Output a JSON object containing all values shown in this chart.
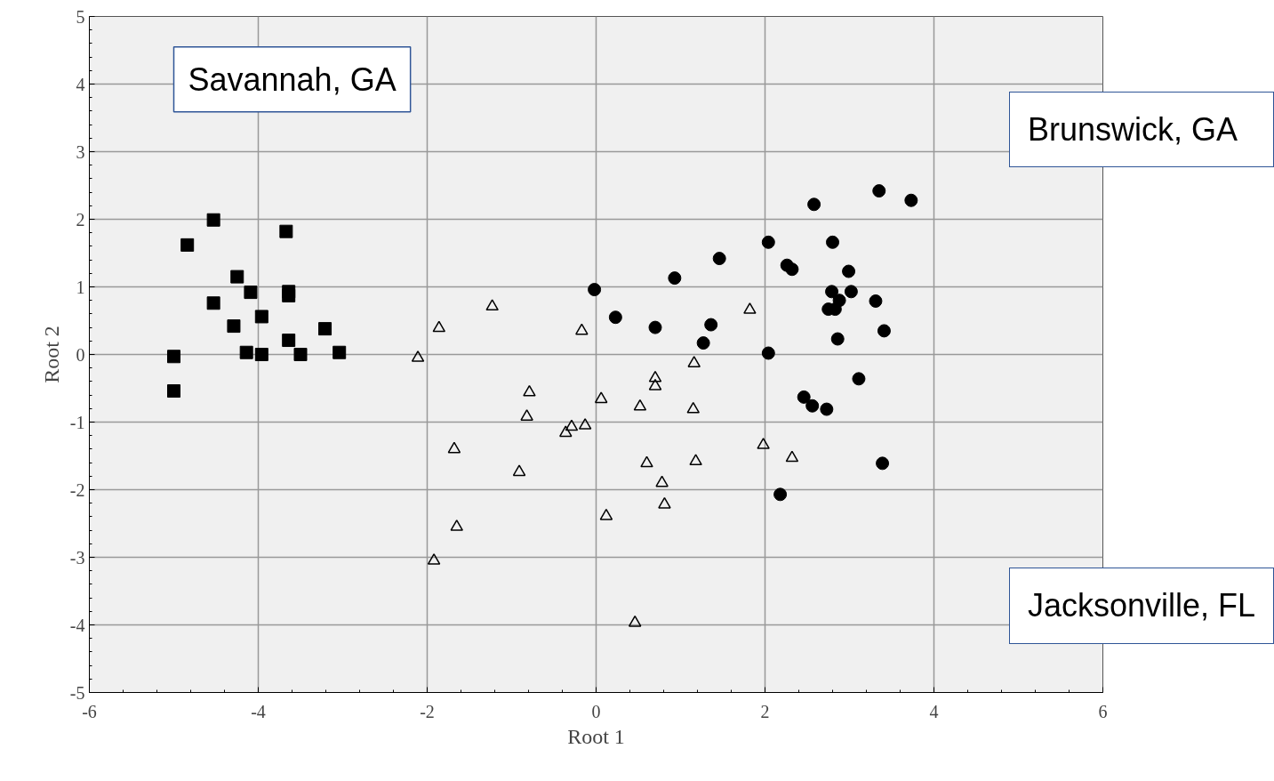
{
  "chart_data": {
    "type": "scatter",
    "xlabel": "Root 1",
    "ylabel": "Root 2",
    "xlim": [
      -6,
      6
    ],
    "ylim": [
      -5,
      5
    ],
    "xticks": [
      -6,
      -4,
      -2,
      0,
      2,
      4,
      6
    ],
    "yticks": [
      -5,
      -4,
      -3,
      -2,
      -1,
      0,
      1,
      2,
      3,
      4,
      5
    ],
    "grid": true,
    "legend": false,
    "series": [
      {
        "name": "Savannah, GA",
        "color": "#000000",
        "marker": "square",
        "x": [
          -4.53,
          -4.84,
          -3.67,
          -4.25,
          -4.09,
          -3.64,
          -3.64,
          -4.53,
          -3.96,
          -4.29,
          -3.21,
          -3.64,
          -4.14,
          -3.96,
          -3.5,
          -3.04,
          -5.0,
          -5.0
        ],
        "values": [
          1.99,
          1.62,
          1.82,
          1.15,
          0.92,
          0.93,
          0.87,
          0.76,
          0.56,
          0.42,
          0.38,
          0.21,
          0.03,
          0.0,
          0.0,
          0.03,
          -0.03,
          -0.54
        ]
      },
      {
        "name": "Brunswick, GA",
        "color": "#000000",
        "marker": "circle",
        "x": [
          3.35,
          3.73,
          2.58,
          2.04,
          2.8,
          1.46,
          2.26,
          2.32,
          2.99,
          0.93,
          -0.02,
          2.79,
          3.02,
          3.31,
          2.88,
          2.75,
          2.83,
          0.23,
          0.7,
          1.36,
          3.41,
          2.86,
          1.27,
          2.04,
          3.11,
          2.46,
          2.56,
          2.73,
          3.39,
          2.18
        ],
        "values": [
          2.42,
          2.28,
          2.22,
          1.66,
          1.66,
          1.42,
          1.32,
          1.26,
          1.23,
          1.13,
          0.96,
          0.93,
          0.93,
          0.79,
          0.8,
          0.67,
          0.67,
          0.55,
          0.4,
          0.44,
          0.35,
          0.23,
          0.17,
          0.02,
          -0.36,
          -0.63,
          -0.76,
          -0.81,
          -1.61,
          -2.07
        ]
      },
      {
        "name": "Jacksonville, FL",
        "color": "#000000",
        "marker": "triangle",
        "x": [
          -1.23,
          -1.86,
          -2.11,
          -0.17,
          1.82,
          1.16,
          0.7,
          0.7,
          -0.79,
          0.06,
          -0.82,
          0.52,
          1.15,
          -0.29,
          -0.13,
          -0.36,
          -1.68,
          1.98,
          2.32,
          0.6,
          1.18,
          -0.91,
          0.78,
          0.81,
          0.12,
          -1.65,
          -1.92,
          0.46
        ],
        "values": [
          0.71,
          0.39,
          -0.05,
          0.35,
          0.66,
          -0.13,
          -0.35,
          -0.47,
          -0.56,
          -0.66,
          -0.92,
          -0.77,
          -0.81,
          -1.07,
          -1.05,
          -1.16,
          -1.4,
          -1.34,
          -1.53,
          -1.61,
          -1.58,
          -1.74,
          -1.9,
          -2.22,
          -2.39,
          -2.55,
          -3.05,
          -3.97
        ]
      }
    ]
  }
}
